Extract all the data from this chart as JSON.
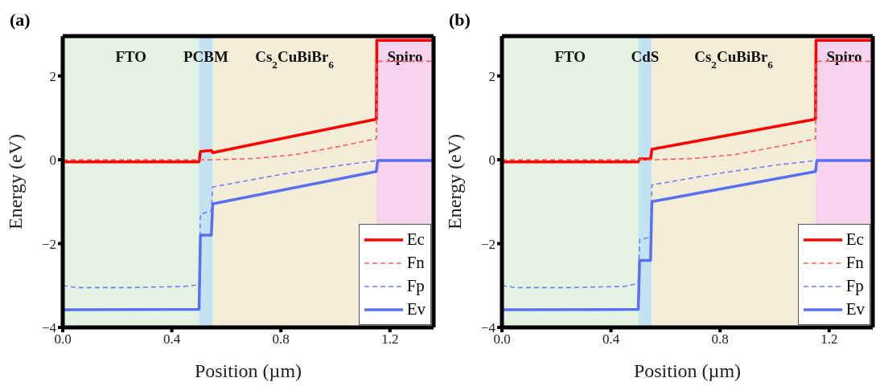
{
  "chart_data": [
    {
      "type": "line",
      "title": "(a)",
      "xlabel": "Position (µm)",
      "ylabel": "Energy (eV)",
      "xlim": [
        0,
        1.36
      ],
      "ylim": [
        -4,
        2.95
      ],
      "xticks": [
        {
          "value": 0,
          "label": "0.0"
        },
        0.4,
        0.8,
        1.2
      ],
      "yticks": [
        -4,
        -2,
        0,
        2
      ],
      "legend": "bottom right",
      "marker": "none",
      "bands": [
        {
          "axis": "x",
          "from": 0,
          "to": 0.5,
          "label": "FTO",
          "color": "#e3f2e1"
        },
        {
          "axis": "x",
          "from": 0.5,
          "to": 0.55,
          "label": "PCBM",
          "color": "#c3e2f2"
        },
        {
          "axis": "x",
          "from": 0.55,
          "to": 1.15,
          "label": "Cs$_{2}$CuBiBr$_{6}$",
          "color": "#f3ecd6"
        },
        {
          "axis": "x",
          "from": 1.15,
          "to": 1.36,
          "label": "Spiro",
          "color": "#f5d3ec"
        }
      ],
      "series": [
        {
          "name": "Ec",
          "color": "#ff0000",
          "line_style": "solid",
          "x": [
            0,
            0.5,
            0.505,
            0.545,
            0.55,
            1.15,
            1.152,
            1.36
          ],
          "values": [
            -0.05,
            -0.05,
            0.2,
            0.22,
            0.17,
            0.97,
            2.85,
            2.85
          ]
        },
        {
          "name": "Fn",
          "color": "#ff5c5c",
          "line_style": "dashed",
          "x": [
            0,
            0.5,
            0.55,
            0.7,
            0.85,
            1.0,
            1.15,
            1.152,
            1.36
          ],
          "values": [
            0,
            0,
            0,
            0.03,
            0.12,
            0.3,
            0.5,
            2.35,
            2.35
          ]
        },
        {
          "name": "Fp",
          "color": "#7080ff",
          "line_style": "dashed",
          "x": [
            0,
            0.05,
            0.25,
            0.45,
            0.5,
            0.505,
            0.545,
            0.55,
            0.8,
            1.0,
            1.15,
            1.36
          ],
          "values": [
            -3.0,
            -3.05,
            -3.05,
            -3.02,
            -2.98,
            -1.3,
            -1.22,
            -0.65,
            -0.35,
            -0.15,
            -0.02,
            -0.02
          ]
        },
        {
          "name": "Ev",
          "color": "#5a70f0",
          "line_style": "solid",
          "x": [
            0,
            0.5,
            0.505,
            0.545,
            0.55,
            1.15,
            1.155,
            1.36
          ],
          "values": [
            -3.58,
            -3.57,
            -1.8,
            -1.8,
            -1.05,
            -0.28,
            -0.02,
            -0.02
          ]
        }
      ]
    },
    {
      "type": "line",
      "title": "(b)",
      "xlabel": "Position (µm)",
      "ylabel": "Energy (eV)",
      "xlim": [
        0,
        1.36
      ],
      "ylim": [
        -4,
        2.95
      ],
      "xticks": [
        {
          "value": 0,
          "label": "0.0"
        },
        0.4,
        0.8,
        1.2
      ],
      "yticks": [
        -4,
        -2,
        0,
        2
      ],
      "legend": "bottom right",
      "marker": "none",
      "bands": [
        {
          "axis": "x",
          "from": 0,
          "to": 0.5,
          "label": "FTO",
          "color": "#e3f2e1"
        },
        {
          "axis": "x",
          "from": 0.5,
          "to": 0.55,
          "label": "CdS",
          "color": "#c3e2f2"
        },
        {
          "axis": "x",
          "from": 0.55,
          "to": 1.15,
          "label": "Cs$_{2}$CuBiBr$_{6}$",
          "color": "#f3ecd6"
        },
        {
          "axis": "x",
          "from": 1.15,
          "to": 1.36,
          "label": "Spiro",
          "color": "#f5d3ec"
        }
      ],
      "series": [
        {
          "name": "Ec",
          "color": "#ff0000",
          "line_style": "solid",
          "x": [
            0,
            0.5,
            0.505,
            0.545,
            0.55,
            1.15,
            1.152,
            1.36
          ],
          "values": [
            -0.05,
            -0.05,
            0.02,
            0.02,
            0.25,
            0.97,
            2.85,
            2.85
          ]
        },
        {
          "name": "Fn",
          "color": "#ff5c5c",
          "line_style": "dashed",
          "x": [
            0,
            0.5,
            0.55,
            0.7,
            0.85,
            1.0,
            1.15,
            1.152,
            1.36
          ],
          "values": [
            0,
            0,
            0,
            0.03,
            0.12,
            0.3,
            0.5,
            2.35,
            2.35
          ]
        },
        {
          "name": "Fp",
          "color": "#7080ff",
          "line_style": "dashed",
          "x": [
            0,
            0.05,
            0.25,
            0.45,
            0.5,
            0.505,
            0.545,
            0.55,
            0.8,
            1.0,
            1.15,
            1.36
          ],
          "values": [
            -3.0,
            -3.05,
            -3.05,
            -3.02,
            -2.95,
            -1.9,
            -1.85,
            -0.6,
            -0.32,
            -0.13,
            -0.02,
            -0.02
          ]
        },
        {
          "name": "Ev",
          "color": "#5a70f0",
          "line_style": "solid",
          "x": [
            0,
            0.5,
            0.505,
            0.545,
            0.55,
            1.15,
            1.155,
            1.36
          ],
          "values": [
            -3.58,
            -3.57,
            -2.4,
            -2.4,
            -1.0,
            -0.28,
            -0.02,
            -0.02
          ]
        }
      ]
    }
  ]
}
